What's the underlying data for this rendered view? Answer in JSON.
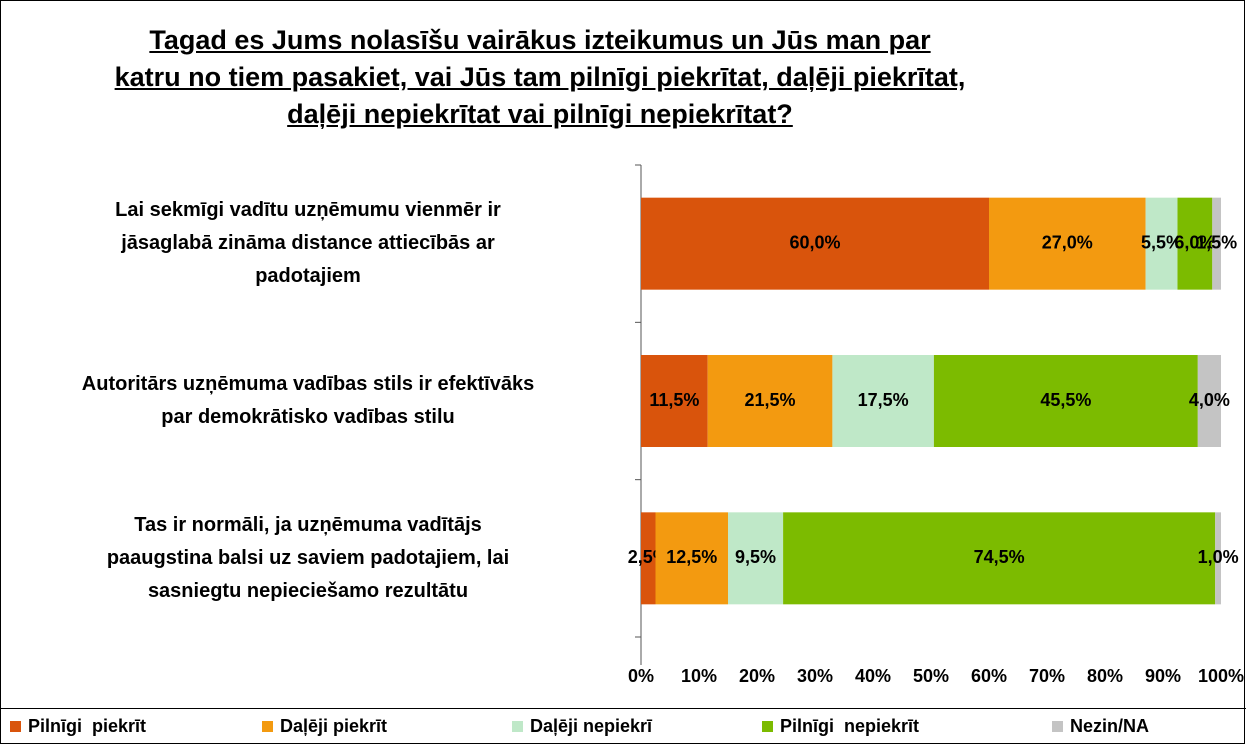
{
  "chart_data": {
    "type": "stacked-barh",
    "title": "Tagad es Jums nolasīšu vairākus izteikumus un Jūs man par\nkatru no tiem pasakiet, vai Jūs tam pilnīgi piekrītat, daļēji piekrītat,\ndaļēji nepiekrītat vai pilnīgi nepiekrītat?",
    "categories": [
      "Lai sekmīgi vadītu uzņēmumu vienmēr ir\njāsaglabā zināma distance attiecībās ar\npadotajiem",
      "Autoritārs uzņēmuma vadības stils ir efektīvāks\npar demokrātisko vadības stilu",
      "Tas ir normāli, ja uzņēmuma vadītājs\npaaugstina balsi uz saviem padotajiem, lai\nsasniegtu nepieciešamo rezultātu"
    ],
    "series": [
      {
        "name": "Pilnīgi  piekrīt",
        "color": "#d9540c",
        "values": [
          60.0,
          11.5,
          2.5
        ],
        "value_labels": [
          "60,0%",
          "11,5%",
          "2,5%"
        ]
      },
      {
        "name": "Daļēji piekrīt",
        "color": "#f39a10",
        "values": [
          27.0,
          21.5,
          12.5
        ],
        "value_labels": [
          "27,0%",
          "21,5%",
          "12,5%"
        ]
      },
      {
        "name": "Daļēji nepiekrī",
        "color": "#bfe8c8",
        "values": [
          5.5,
          17.5,
          9.5
        ],
        "value_labels": [
          "5,5%",
          "17,5%",
          "9,5%"
        ]
      },
      {
        "name": "Pilnīgi  nepiekrīt",
        "color": "#7cbb00",
        "values": [
          6.0,
          45.5,
          74.5
        ],
        "value_labels": [
          "6,0%",
          "45,5%",
          "74,5%"
        ]
      },
      {
        "name": "Nezin/NA",
        "color": "#c4c4c4",
        "values": [
          1.5,
          4.0,
          1.0
        ],
        "value_labels": [
          "1,5%",
          "4,0%",
          "1,0%"
        ]
      }
    ],
    "xlim": [
      0,
      100
    ],
    "xticks": [
      {
        "value": 0,
        "label": "0%"
      },
      {
        "value": 10,
        "label": "10%"
      },
      {
        "value": 20,
        "label": "20%"
      },
      {
        "value": 30,
        "label": "30%"
      },
      {
        "value": 40,
        "label": "40%"
      },
      {
        "value": 50,
        "label": "50%"
      },
      {
        "value": 60,
        "label": "60%"
      },
      {
        "value": 70,
        "label": "70%"
      },
      {
        "value": 80,
        "label": "80%"
      },
      {
        "value": 90,
        "label": "90%"
      },
      {
        "value": 100,
        "label": "100%"
      }
    ],
    "grid": false,
    "legend": "bottom"
  }
}
